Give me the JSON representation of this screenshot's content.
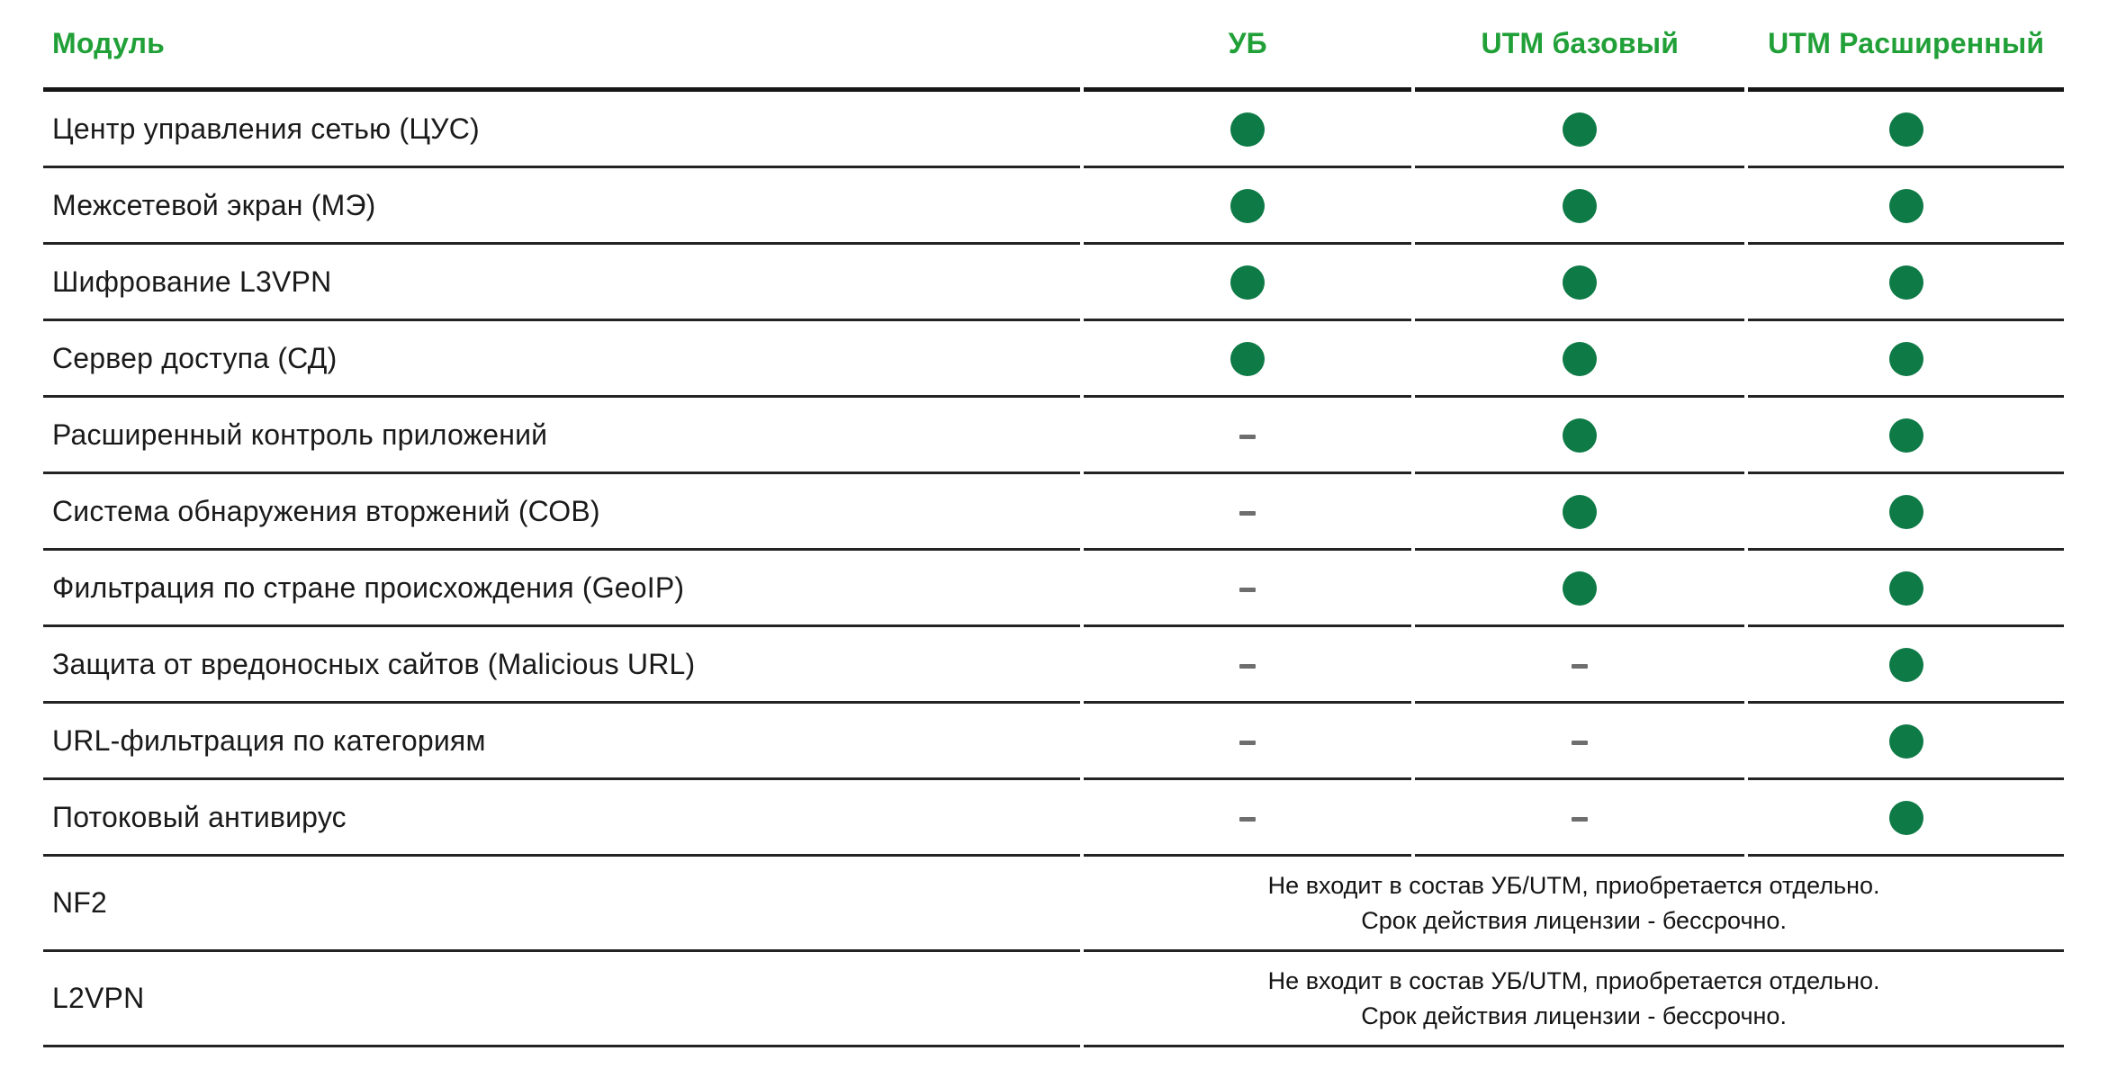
{
  "table": {
    "columns": [
      {
        "label": "Модуль"
      },
      {
        "label": "УБ"
      },
      {
        "label": "UTM базовый"
      },
      {
        "label": "UTM Расширенный"
      }
    ],
    "rows": [
      {
        "module": "Центр управления сетью (ЦУС)",
        "values": [
          "included",
          "included",
          "included"
        ]
      },
      {
        "module": "Межсетевой экран (МЭ)",
        "values": [
          "included",
          "included",
          "included"
        ]
      },
      {
        "module": "Шифрование L3VPN",
        "values": [
          "included",
          "included",
          "included"
        ]
      },
      {
        "module": "Сервер доступа (СД)",
        "values": [
          "included",
          "included",
          "included"
        ]
      },
      {
        "module": "Расширенный контроль приложений",
        "values": [
          "not-included",
          "included",
          "included"
        ]
      },
      {
        "module": "Система обнаружения вторжений (СОВ)",
        "values": [
          "not-included",
          "included",
          "included"
        ]
      },
      {
        "module": "Фильтрация по стране происхождения (GeoIP)",
        "values": [
          "not-included",
          "included",
          "included"
        ]
      },
      {
        "module": "Защита от вредоносных сайтов (Malicious URL)",
        "values": [
          "not-included",
          "not-included",
          "included"
        ]
      },
      {
        "module": "URL-фильтрация по категориям",
        "values": [
          "not-included",
          "not-included",
          "included"
        ]
      },
      {
        "module": "Потоковый антивирус",
        "values": [
          "not-included",
          "not-included",
          "included"
        ]
      },
      {
        "module": "NF2",
        "note_lines": [
          "Не входит в состав УБ/UTM, приобретается отдельно.",
          "Срок действия лицензии - бессрочно."
        ]
      },
      {
        "module": "L2VPN",
        "note_lines": [
          "Не входит в состав УБ/UTM, приобретается отдельно.",
          "Срок действия лицензии - бессрочно."
        ]
      }
    ],
    "legend": {
      "included_marker": "green-dot",
      "not_included_marker": "gray-dash"
    },
    "colors": {
      "header_green": "#21A038",
      "dot_green": "#0E7A46",
      "dash_gray": "#6E6E6E",
      "text": "#1A1A1A",
      "border": "#232323"
    }
  }
}
